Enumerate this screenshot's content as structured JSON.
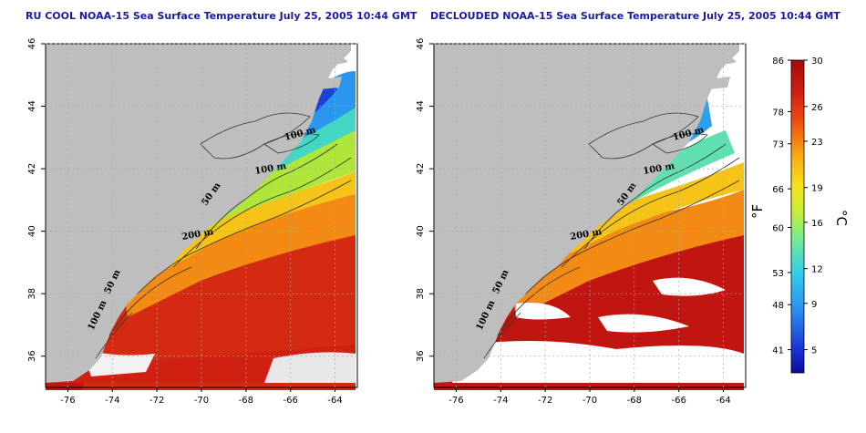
{
  "panels": [
    {
      "title": "RU COOL NOAA-15 Sea Surface Temperature July 25, 2005 10:44 GMT"
    },
    {
      "title": "DECLOUDED NOAA-15 Sea Surface Temperature July 25, 2005 10:44 GMT"
    }
  ],
  "axes": {
    "x_ticks": [
      "-76",
      "-74",
      "-72",
      "-70",
      "-68",
      "-66",
      "-64"
    ],
    "y_ticks": [
      "36",
      "38",
      "40",
      "42",
      "44",
      "46"
    ]
  },
  "contours": {
    "left": [
      "100 m",
      "100 m",
      "50 m",
      "200 m",
      "50 m",
      "100 m"
    ],
    "right": [
      "100 m",
      "100 m",
      "50 m",
      "200 m",
      "50 m",
      "100 m"
    ]
  },
  "colorbar": {
    "fahrenheit_ticks": [
      "86",
      "78",
      "73",
      "66",
      "60",
      "53",
      "48",
      "41"
    ],
    "celsius_ticks": [
      "30",
      "26",
      "23",
      "19",
      "16",
      "12",
      "9",
      "5"
    ],
    "fahrenheit_label": "°F",
    "celsius_label": "°C",
    "range_c": [
      3,
      30
    ],
    "colors": [
      "#0a0a9e",
      "#1f4ff0",
      "#27b2ef",
      "#3fe3c4",
      "#b7ee3a",
      "#f6e31a",
      "#f8a712",
      "#f04a0f",
      "#c81412",
      "#a30a0a"
    ]
  },
  "legend_colors": {
    "land": "#bebebe",
    "missing_data": "#ffffff"
  }
}
